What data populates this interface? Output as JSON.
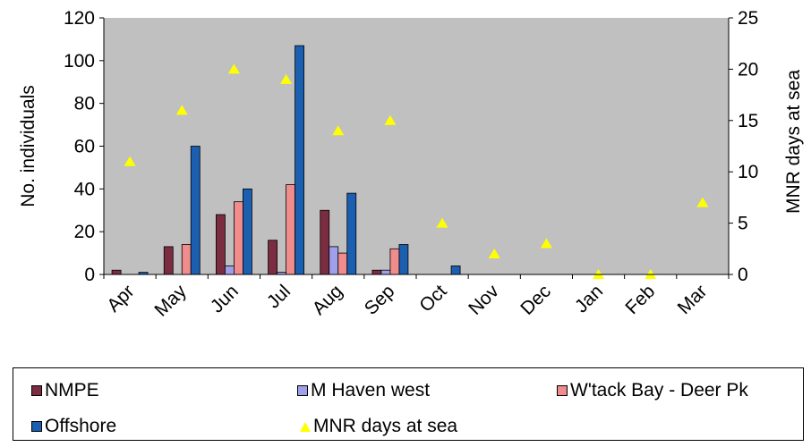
{
  "chart_data": {
    "type": "bar",
    "categories": [
      "Apr",
      "May",
      "Jun",
      "Jul",
      "Aug",
      "Sep",
      "Oct",
      "Nov",
      "Dec",
      "Jan",
      "Feb",
      "Mar"
    ],
    "series": [
      {
        "name": "NMPE",
        "axis": "left",
        "color": "#7b2c41",
        "values": [
          2,
          13,
          28,
          16,
          30,
          2,
          0,
          0,
          0,
          0,
          0,
          0
        ]
      },
      {
        "name": "M Haven west",
        "axis": "left",
        "color": "#a0a0ea",
        "values": [
          0,
          0,
          4,
          1,
          13,
          2,
          0,
          0,
          0,
          0,
          0,
          0
        ]
      },
      {
        "name": "W'tack Bay - Deer Pk",
        "axis": "left",
        "color": "#f08c8c",
        "values": [
          0,
          14,
          34,
          42,
          10,
          12,
          0,
          0,
          0,
          0,
          0,
          0
        ]
      },
      {
        "name": "Offshore",
        "axis": "left",
        "color": "#1a5fb0",
        "values": [
          1,
          60,
          40,
          107,
          38,
          14,
          4,
          0,
          0,
          0,
          0,
          0
        ]
      }
    ],
    "secondary_series": {
      "name": "MNR days at sea",
      "type": "scatter",
      "marker": "triangle",
      "color": "#ffff00",
      "values": [
        11,
        16,
        20,
        19,
        14,
        15,
        5,
        2,
        3,
        0,
        0,
        7
      ]
    },
    "ylabel": "No. individuals",
    "y2label": "MNR days at sea",
    "ylim": [
      0,
      120
    ],
    "y2lim": [
      0,
      25
    ],
    "yticks": [
      "0",
      "20",
      "40",
      "60",
      "80",
      "100",
      "120"
    ],
    "y2ticks": [
      "0",
      "5",
      "10",
      "15",
      "20",
      "25"
    ],
    "grid": false,
    "plot_background": "#c0c0c0",
    "legend_position": "bottom"
  },
  "legend": {
    "items": [
      {
        "label": "NMPE",
        "color": "#7b2c41"
      },
      {
        "label": "M Haven west",
        "color": "#a0a0ea"
      },
      {
        "label": "W'tack Bay - Deer Pk",
        "color": "#f08c8c"
      },
      {
        "label": "Offshore",
        "color": "#1a5fb0"
      },
      {
        "label": "MNR days at sea",
        "color": "#ffff00"
      }
    ]
  }
}
